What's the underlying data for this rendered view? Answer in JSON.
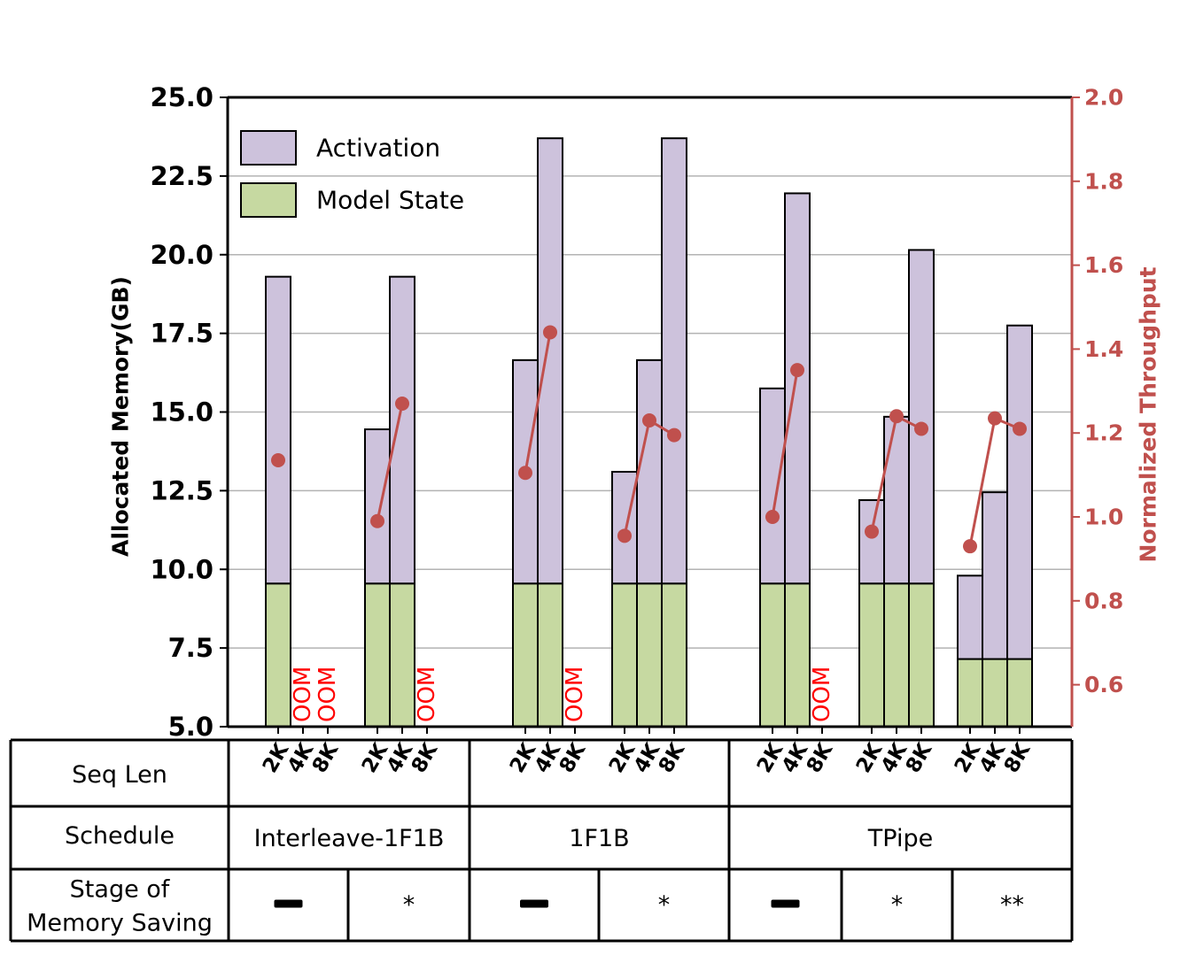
{
  "chart_data": {
    "type": "bar",
    "stacked": true,
    "left_axis": {
      "label": "Allocated Memory(GB)",
      "ylim": [
        5.0,
        25.0
      ],
      "ticks": [
        "5.0",
        "7.5",
        "10.0",
        "12.5",
        "15.0",
        "17.5",
        "20.0",
        "22.5",
        "25.0"
      ]
    },
    "right_axis": {
      "label": "Normalized Throughput",
      "ylim": [
        0.5,
        2.0
      ],
      "ticks": [
        "0.6",
        "0.8",
        "1.0",
        "1.2",
        "1.4",
        "1.6",
        "1.8",
        "2.0"
      ],
      "color": "#c0504d"
    },
    "legend": {
      "position": "top-left",
      "items": [
        {
          "name": "Activation",
          "color": "#cdc2dc"
        },
        {
          "name": "Model State",
          "color": "#c6d9a1"
        }
      ]
    },
    "colors": {
      "activation": "#cdc2dc",
      "model_state": "#c6d9a1",
      "throughput": "#c0504d",
      "oom": "#ff0000"
    },
    "oom_label": "OOM",
    "groups": [
      {
        "schedule": "Interleave-1F1B",
        "stage": "−",
        "bars": [
          {
            "seq": "2K",
            "model_state": 9.55,
            "total": 19.3,
            "throughput": 1.135
          },
          {
            "seq": "4K",
            "oom": true
          },
          {
            "seq": "8K",
            "oom": true
          }
        ]
      },
      {
        "schedule": "Interleave-1F1B",
        "stage": "*",
        "bars": [
          {
            "seq": "2K",
            "model_state": 9.55,
            "total": 14.45,
            "throughput": 0.99
          },
          {
            "seq": "4K",
            "model_state": 9.55,
            "total": 19.3,
            "throughput": 1.27
          },
          {
            "seq": "8K",
            "oom": true
          }
        ]
      },
      {
        "schedule": "1F1B",
        "stage": "−",
        "bars": [
          {
            "seq": "2K",
            "model_state": 9.55,
            "total": 16.65,
            "throughput": 1.105
          },
          {
            "seq": "4K",
            "model_state": 9.55,
            "total": 23.7,
            "throughput": 1.44
          },
          {
            "seq": "8K",
            "oom": true
          }
        ]
      },
      {
        "schedule": "1F1B",
        "stage": "*",
        "bars": [
          {
            "seq": "2K",
            "model_state": 9.55,
            "total": 13.1,
            "throughput": 0.955
          },
          {
            "seq": "4K",
            "model_state": 9.55,
            "total": 16.65,
            "throughput": 1.23
          },
          {
            "seq": "8K",
            "model_state": 9.55,
            "total": 23.7,
            "throughput": 1.195
          }
        ]
      },
      {
        "schedule": "TPipe",
        "stage": "−",
        "bars": [
          {
            "seq": "2K",
            "model_state": 9.55,
            "total": 15.75,
            "throughput": 1.0
          },
          {
            "seq": "4K",
            "model_state": 9.55,
            "total": 21.95,
            "throughput": 1.35
          },
          {
            "seq": "8K",
            "oom": true
          }
        ]
      },
      {
        "schedule": "TPipe",
        "stage": "*",
        "bars": [
          {
            "seq": "2K",
            "model_state": 9.55,
            "total": 12.2,
            "throughput": 0.965
          },
          {
            "seq": "4K",
            "model_state": 9.55,
            "total": 14.85,
            "throughput": 1.24
          },
          {
            "seq": "8K",
            "model_state": 9.55,
            "total": 20.15,
            "throughput": 1.21
          }
        ]
      },
      {
        "schedule": "TPipe",
        "stage": "**",
        "bars": [
          {
            "seq": "2K",
            "model_state": 7.15,
            "total": 9.8,
            "throughput": 0.93
          },
          {
            "seq": "4K",
            "model_state": 7.15,
            "total": 12.45,
            "throughput": 1.235
          },
          {
            "seq": "8K",
            "model_state": 7.15,
            "total": 17.75,
            "throughput": 1.21
          }
        ]
      }
    ],
    "table": {
      "row_labels": {
        "seq_len": "Seq Len",
        "schedule": "Schedule",
        "stage": "Stage of\nMemory Saving"
      },
      "schedules": [
        "Interleave-1F1B",
        "1F1B",
        "TPipe"
      ],
      "stages": [
        "−",
        "*",
        "−",
        "*",
        "−",
        "*",
        "**"
      ]
    }
  }
}
